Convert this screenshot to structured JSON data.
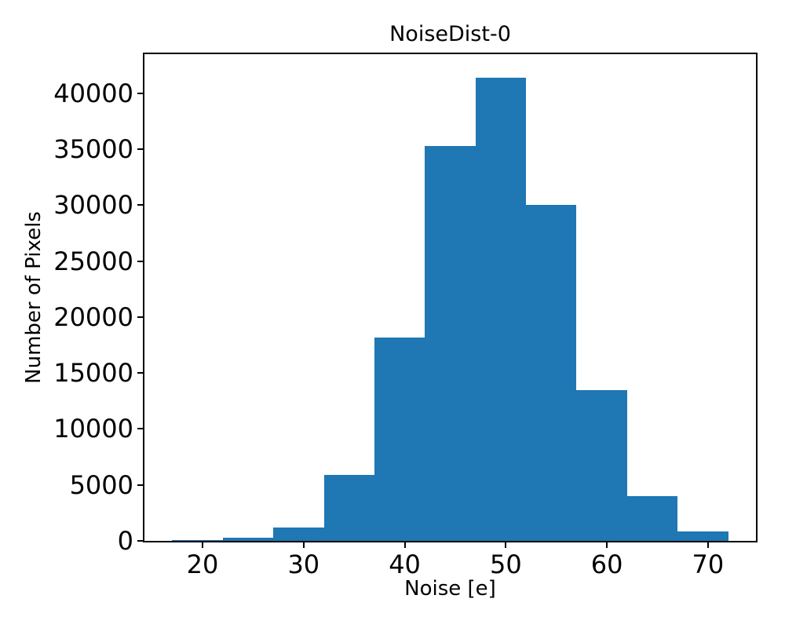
{
  "figure": {
    "title": "NoiseDist-0",
    "xlabel": "Noise [e]",
    "ylabel": "Number of Pixels"
  },
  "chart_data": {
    "type": "bar",
    "subtype": "histogram",
    "title": "NoiseDist-0",
    "xlabel": "Noise [e]",
    "ylabel": "Number of Pixels",
    "bin_edges": [
      17,
      22,
      27,
      32,
      37,
      42,
      47,
      52,
      57,
      62,
      67,
      72
    ],
    "counts": [
      100,
      250,
      1200,
      5900,
      18200,
      35300,
      41400,
      30000,
      13450,
      3970,
      850
    ],
    "bin_width": 5,
    "xticks": [
      20,
      30,
      40,
      50,
      60,
      70
    ],
    "yticks": [
      0,
      5000,
      10000,
      15000,
      20000,
      25000,
      30000,
      35000,
      40000
    ],
    "xlim": [
      14.25,
      74.75
    ],
    "ylim": [
      0,
      43500
    ],
    "bar_color": "#1f77b4",
    "axis_color": "#000000",
    "background_color": "#ffffff",
    "grid": false,
    "legend": false
  }
}
